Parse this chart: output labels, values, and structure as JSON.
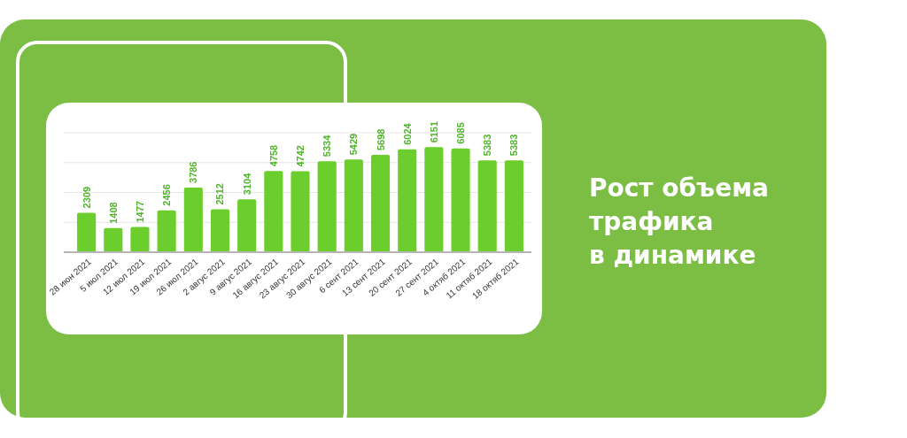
{
  "chart_data": {
    "type": "bar",
    "title": "Рост объема трафика в динамике",
    "categories": [
      "28 июн 2021",
      "5 июл 2021",
      "12 июл 2021",
      "19 июл 2021",
      "26 июл 2021",
      "2 авгус 2021",
      "9 авгус 2021",
      "16 авгус 2021",
      "23 авгус 2021",
      "30 авгус 2021",
      "6 сент 2021",
      "13 сент 2021",
      "20 сент 2021",
      "27 сент 2021",
      "4 октяб 2021",
      "11 октяб 2021",
      "18 октяб 2021"
    ],
    "values": [
      2309,
      1408,
      1477,
      2456,
      3786,
      2512,
      3104,
      4758,
      4742,
      5334,
      5429,
      5698,
      6024,
      6151,
      6085,
      5383,
      5383
    ],
    "color": "#6cce2c",
    "ylim": [
      0,
      7000
    ],
    "yticks": [
      {
        "value": 0,
        "label": null
      },
      {
        "value": 1750,
        "label": null
      },
      {
        "value": 3500,
        "label": null
      },
      {
        "value": 5250,
        "label": null
      },
      {
        "value": 7000,
        "label": null
      }
    ],
    "grid": "y",
    "data_labels": true,
    "tick_labels": "x"
  }
}
